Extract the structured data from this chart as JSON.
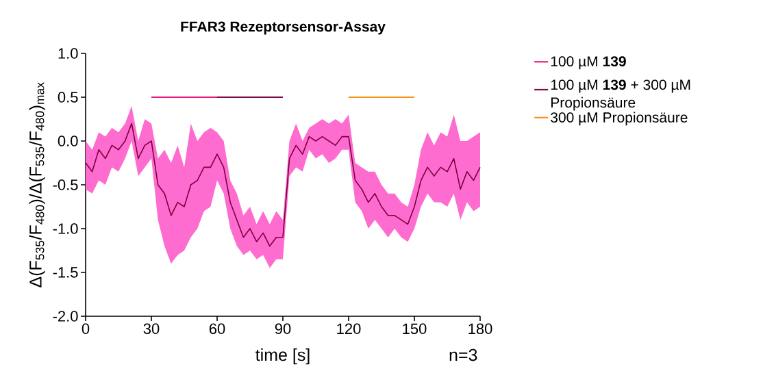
{
  "chart_data": {
    "type": "line",
    "title": "FFAR3 Rezeptorsensor-Assay",
    "xlabel": "time [s]",
    "ylabel": "Δ(F$_{535}$/F$_{480}$)/Δ(F$_{535}$/F$_{480}$)$_{max}$",
    "xlim": [
      0,
      180
    ],
    "xticks": [
      0,
      30,
      60,
      90,
      120,
      150,
      180
    ],
    "ylim": [
      -2,
      1
    ],
    "yticks": [
      {
        "value": -2,
        "label": "-2.0"
      },
      {
        "value": -1.5,
        "label": "-1.5"
      },
      {
        "value": -1,
        "label": "-1.0"
      },
      {
        "value": -0.5,
        "label": "-0.5"
      },
      {
        "value": 0,
        "label": "0.0"
      },
      {
        "value": 0.5,
        "label": "0.5"
      },
      {
        "value": 1,
        "label": "1.0"
      }
    ],
    "legend": "right",
    "grid": false,
    "annotations": [
      "n=3"
    ],
    "series": [
      {
        "color": "#7a0040",
        "x": [
          0,
          3,
          6,
          9,
          12,
          15,
          18,
          21,
          24,
          27,
          30,
          33,
          36,
          39,
          42,
          45,
          48,
          51,
          54,
          57,
          60,
          63,
          66,
          69,
          72,
          75,
          78,
          81,
          84,
          87,
          90,
          93,
          96,
          99,
          102,
          105,
          108,
          111,
          114,
          117,
          120,
          123,
          126,
          129,
          132,
          135,
          138,
          141,
          144,
          147,
          150,
          153,
          156,
          159,
          162,
          165,
          168,
          171,
          174,
          177,
          180
        ],
        "values": [
          -0.25,
          -0.35,
          -0.1,
          -0.2,
          -0.05,
          -0.1,
          0.0,
          0.2,
          -0.2,
          -0.05,
          0.0,
          -0.5,
          -0.6,
          -0.85,
          -0.7,
          -0.75,
          -0.5,
          -0.45,
          -0.3,
          -0.3,
          -0.15,
          -0.3,
          -0.7,
          -0.9,
          -1.1,
          -1.0,
          -1.15,
          -1.05,
          -1.2,
          -1.1,
          -1.1,
          -0.2,
          -0.05,
          -0.15,
          0.05,
          0.0,
          0.05,
          0.0,
          -0.05,
          0.05,
          0.05,
          -0.45,
          -0.55,
          -0.7,
          -0.6,
          -0.75,
          -0.85,
          -0.85,
          -0.9,
          -0.95,
          -0.75,
          -0.45,
          -0.3,
          -0.4,
          -0.3,
          -0.35,
          -0.2,
          -0.55,
          -0.35,
          -0.45,
          -0.3
        ],
        "lower": [
          -0.55,
          -0.6,
          -0.45,
          -0.5,
          -0.3,
          -0.35,
          -0.2,
          0.0,
          -0.4,
          -0.3,
          -0.2,
          -0.9,
          -1.2,
          -1.4,
          -1.3,
          -1.25,
          -1.1,
          -1.0,
          -0.8,
          -0.75,
          -0.45,
          -0.6,
          -1.0,
          -1.2,
          -1.3,
          -1.25,
          -1.35,
          -1.3,
          -1.45,
          -1.35,
          -1.35,
          -0.4,
          -0.3,
          -0.35,
          -0.1,
          -0.2,
          -0.15,
          -0.25,
          -0.2,
          -0.1,
          -0.1,
          -0.7,
          -0.8,
          -1.0,
          -0.9,
          -1.0,
          -1.1,
          -1.0,
          -1.1,
          -1.15,
          -1.0,
          -0.75,
          -0.6,
          -0.7,
          -0.7,
          -0.75,
          -0.6,
          -0.9,
          -0.7,
          -0.8,
          -0.75
        ],
        "upper": [
          0.0,
          -0.1,
          0.1,
          0.05,
          0.15,
          0.1,
          0.2,
          0.4,
          0.0,
          0.25,
          0.2,
          -0.2,
          -0.1,
          -0.25,
          -0.05,
          -0.3,
          0.2,
          0.0,
          0.1,
          0.15,
          0.1,
          0.0,
          -0.45,
          -0.6,
          -0.85,
          -0.75,
          -0.95,
          -0.8,
          -0.95,
          -0.8,
          -0.9,
          0.0,
          0.2,
          0.0,
          0.15,
          0.2,
          0.25,
          0.2,
          0.25,
          0.2,
          0.3,
          -0.25,
          -0.3,
          -0.35,
          -0.35,
          -0.5,
          -0.6,
          -0.6,
          -0.7,
          -0.75,
          -0.5,
          -0.1,
          0.1,
          -0.05,
          0.1,
          0.05,
          0.3,
          0.0,
          0.0,
          0.05,
          0.1
        ]
      },
      {
        "name": "100 µM **139**",
        "color": "#ec1a7e",
        "x": [
          30,
          60
        ],
        "values": [
          0.5,
          0.5
        ]
      },
      {
        "name": "100 µM **139** + 300 µM Propionsäure",
        "color": "#7d0a48",
        "x": [
          60,
          90
        ],
        "values": [
          0.5,
          0.5
        ]
      },
      {
        "name": "300 µM Propionsäure",
        "color": "#f7931e",
        "x": [
          120,
          150
        ],
        "values": [
          0.5,
          0.5
        ]
      }
    ]
  }
}
